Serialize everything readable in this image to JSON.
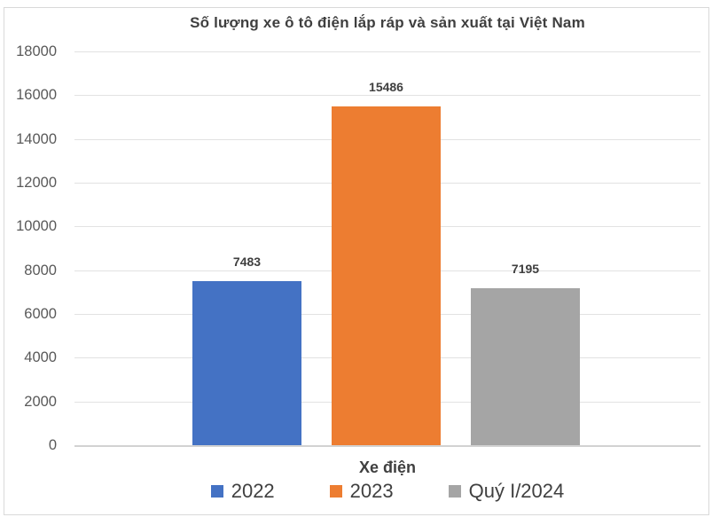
{
  "chart_data": {
    "type": "bar",
    "title": "Số lượng xe ô tô điện lắp ráp và sản xuất tại Việt Nam",
    "categories": [
      "Xe điện"
    ],
    "series": [
      {
        "name": "2022",
        "values": [
          7483
        ],
        "color": "#4472C4"
      },
      {
        "name": "2023",
        "values": [
          15486
        ],
        "color": "#ED7D31"
      },
      {
        "name": "Quý I/2024",
        "values": [
          7195
        ],
        "color": "#A5A5A5"
      }
    ],
    "data_labels": [
      "7483",
      "15486",
      "7195"
    ],
    "xlabel": "Xe điện",
    "ylabel": "",
    "ylim": [
      0,
      18000
    ],
    "ytick_step": 2000,
    "yticks": [
      "0",
      "2000",
      "4000",
      "6000",
      "8000",
      "10000",
      "12000",
      "14000",
      "16000",
      "18000"
    ],
    "grid": true,
    "legend_position": "bottom",
    "legend_entries": [
      "2022",
      "2023",
      "Quý I/2024"
    ],
    "colors": {
      "series_2022": "#4472C4",
      "series_2023": "#ED7D31",
      "series_quy_i_2024": "#A5A5A5",
      "gridline": "#e2e2e2",
      "axis_line": "#d2d2d2",
      "frame_border": "#d9d9d9",
      "tick_label": "#595959",
      "text": "#3f3f3f",
      "background": "#ffffff"
    }
  }
}
